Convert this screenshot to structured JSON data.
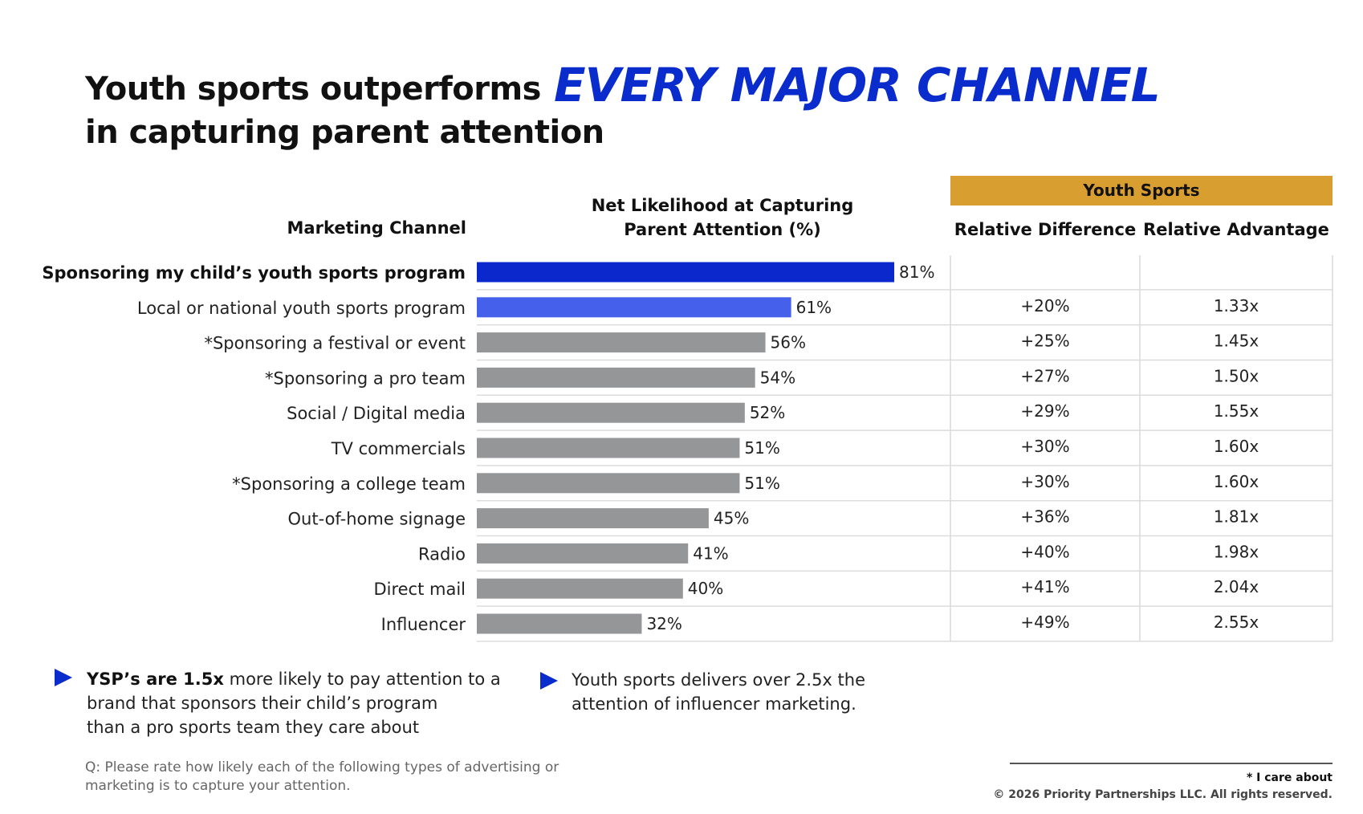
{
  "title": {
    "line1": "Youth sports outperforms",
    "accent": "EVERY MAJOR CHANNEL",
    "line2": "in capturing parent attention"
  },
  "table_headers": {
    "channel": "Marketing Channel",
    "net_likelihood_line1": "Net Likelihood at Capturing",
    "net_likelihood_line2": "Parent Attention (%)",
    "group": "Youth Sports",
    "relative_difference": "Relative Difference",
    "relative_advantage": "Relative Advantage"
  },
  "colors": {
    "highlight": "#0a28cc",
    "secondary": "#4561ec",
    "other": "#959698",
    "accent_gold": "#d99e30",
    "title_accent": "#0a2ccc"
  },
  "chart_data": {
    "type": "bar",
    "orientation": "horizontal",
    "categories": [
      "Sponsoring my child’s youth sports program",
      "Local or national youth sports program",
      "*Sponsoring a festival or event",
      "*Sponsoring a pro team",
      "Social / Digital media",
      "TV commercials",
      "*Sponsoring a college team",
      "Out-of-home signage",
      "Radio",
      "Direct mail",
      "Influencer"
    ],
    "values": [
      81,
      61,
      56,
      54,
      52,
      51,
      51,
      45,
      41,
      40,
      32
    ],
    "value_labels": [
      "81%",
      "61%",
      "56%",
      "54%",
      "52%",
      "51%",
      "51%",
      "45%",
      "41%",
      "40%",
      "32%"
    ],
    "bar_colors": [
      "highlight",
      "secondary",
      "other",
      "other",
      "other",
      "other",
      "other",
      "other",
      "other",
      "other",
      "other"
    ],
    "relative_difference": [
      "",
      "+20%",
      "+25%",
      "+27%",
      "+29%",
      "+30%",
      "+30%",
      "+36%",
      "+40%",
      "+41%",
      "+49%"
    ],
    "relative_advantage": [
      "",
      "1.33x",
      "1.45x",
      "1.50x",
      "1.55x",
      "1.60x",
      "1.60x",
      "1.81x",
      "1.98x",
      "2.04x",
      "2.55x"
    ],
    "xlim": [
      0,
      100
    ],
    "grid": false
  },
  "bullets": [
    {
      "bold": "YSP’s are 1.5x",
      "lines": [
        " more likely to pay attention to a",
        "brand that sponsors their child’s program",
        "than a pro sports team they care about"
      ]
    },
    {
      "bold": "",
      "lines": [
        "Youth sports delivers over 2.5x the",
        "attention of influencer marketing."
      ]
    }
  ],
  "question": {
    "line1": "Q: Please rate how likely each of the following types of advertising or",
    "line2": "marketing is to capture your attention."
  },
  "footnote": "* I care about",
  "copyright": "© 2026 Priority Partnerships LLC. All rights reserved."
}
